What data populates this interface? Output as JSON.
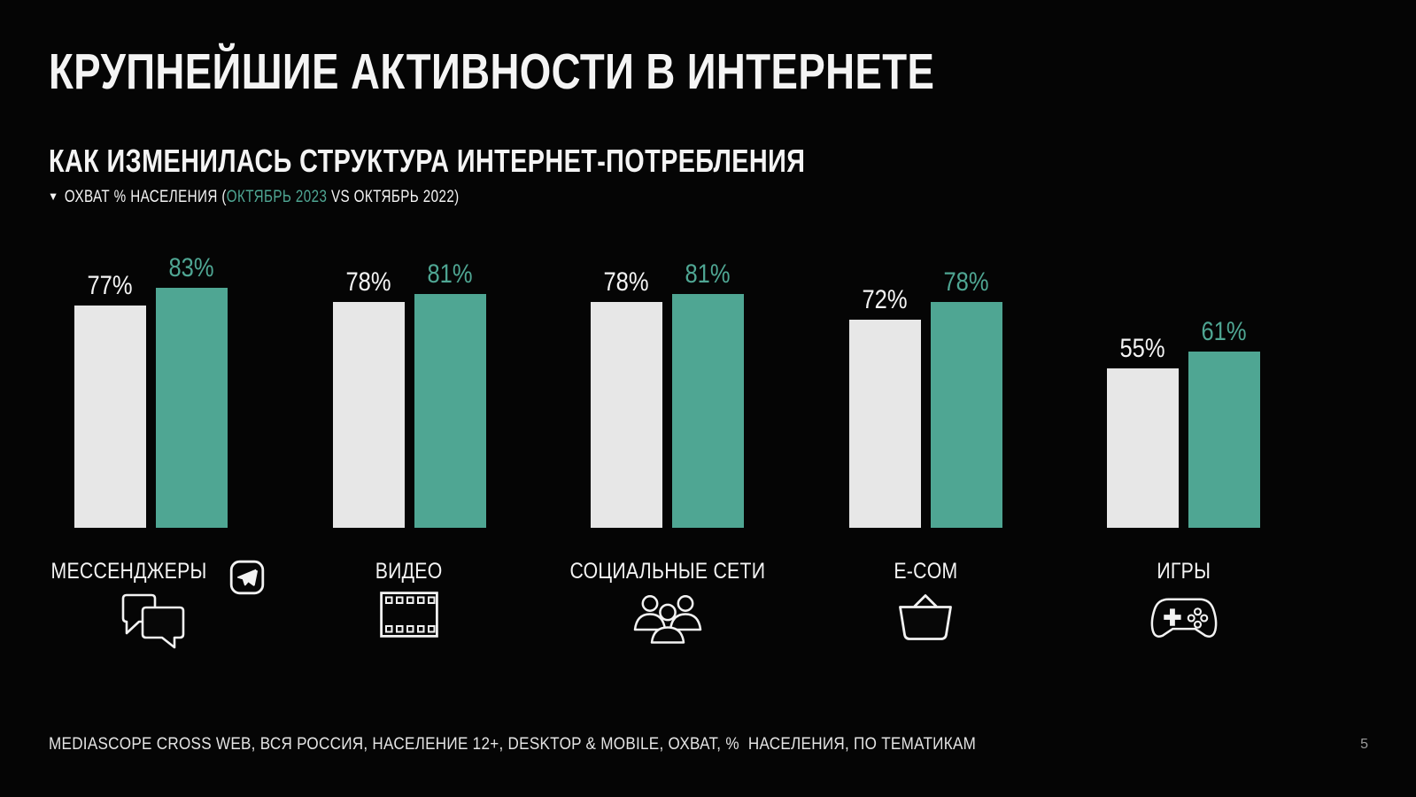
{
  "slide": {
    "title": "КРУПНЕЙШИЕ АКТИВНОСТИ В ИНТЕРНЕТЕ",
    "subtitle": "КАК ИЗМЕНИЛАСЬ СТРУКТУРА ИНТЕРНЕТ-ПОТРЕБЛЕНИЯ",
    "legend": {
      "marker": "▼",
      "prefix": "ОХВАТ % НАСЕЛЕНИЯ (",
      "highlight": "ОКТЯБРЬ 2023",
      "suffix": " VS ОКТЯБРЬ 2022)"
    },
    "footer": "MEDIASCOPE CROSS WEB, ВСЯ РОССИЯ, НАСЕЛЕНИЕ 12+, DESKTOP & MOBILE, ОХВАТ, %  НАСЕЛЕНИЯ, ПО ТЕМАТИКАМ",
    "page_number": "5"
  },
  "colors": {
    "background": "#050505",
    "text": "#f4f4f4",
    "teal": "#4fa693",
    "bar_2022": "#e7e7e7",
    "bar_2023": "#4fa693",
    "page_number": "#9b9b9b"
  },
  "chart_data": {
    "type": "bar",
    "title": "КАК ИЗМЕНИЛАСЬ СТРУКТУРА ИНТЕРНЕТ-ПОТРЕБЛЕНИЯ",
    "subtitle_metric": "ОХВАТ % НАСЕЛЕНИЯ",
    "ylabel": "ОХВАТ, % НАСЕЛЕНИЯ",
    "xlabel": "",
    "ylim": [
      0,
      90
    ],
    "grid": false,
    "legend_position": "top-left-inline",
    "value_suffix": "%",
    "categories": [
      "МЕССЕНДЖЕРЫ",
      "ВИДЕО",
      "СОЦИАЛЬНЫЕ СЕТИ",
      "E-COM",
      "ИГРЫ"
    ],
    "category_icons": [
      "chat-bubbles-icon",
      "film-strip-icon",
      "people-group-icon",
      "shopping-basket-icon",
      "gamepad-icon"
    ],
    "category_label_badges": [
      "telegram-icon",
      null,
      null,
      null,
      null
    ],
    "series": [
      {
        "name": "ОКТЯБРЬ 2022",
        "slug": "oct-2022",
        "color": "#e7e7e7",
        "label_color": "#f4f4f4",
        "values": [
          77,
          78,
          78,
          72,
          55
        ]
      },
      {
        "name": "ОКТЯБРЬ 2023",
        "slug": "oct-2023",
        "color": "#4fa693",
        "label_color": "#4fa693",
        "values": [
          83,
          81,
          81,
          78,
          61
        ]
      }
    ]
  }
}
